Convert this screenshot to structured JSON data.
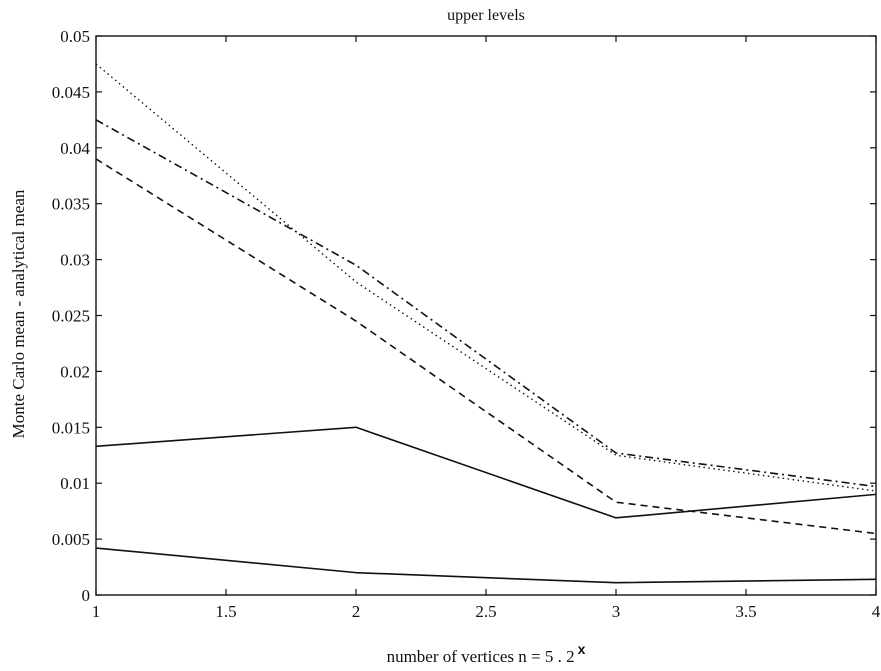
{
  "chart_data": {
    "type": "line",
    "title": "upper levels",
    "xlabel": "number of vertices n = 5 . 2",
    "xlabel_superscript": "x",
    "ylabel": "Monte Carlo mean - analytical mean",
    "xlim": [
      1,
      4
    ],
    "ylim": [
      0,
      0.05
    ],
    "x_ticks": [
      "1",
      "1.5",
      "2",
      "2.5",
      "3",
      "3.5",
      "4"
    ],
    "y_ticks": [
      "0",
      "0.005",
      "0.01",
      "0.015",
      "0.02",
      "0.025",
      "0.03",
      "0.035",
      "0.04",
      "0.045",
      "0.05"
    ],
    "x": [
      1,
      2,
      3,
      4
    ],
    "grid": false,
    "series": [
      {
        "values": [
          0.0475,
          0.028,
          0.0125,
          0.0093
        ],
        "style": "dotted"
      },
      {
        "values": [
          0.0425,
          0.0295,
          0.0127,
          0.0097
        ],
        "style": "dashdot"
      },
      {
        "values": [
          0.039,
          0.0245,
          0.0083,
          0.0055
        ],
        "style": "dashed"
      },
      {
        "values": [
          0.0133,
          0.015,
          0.0069,
          0.009
        ],
        "style": "solid"
      },
      {
        "values": [
          0.0042,
          0.002,
          0.0011,
          0.0014
        ],
        "style": "solid"
      }
    ],
    "line_color": "#111111"
  }
}
